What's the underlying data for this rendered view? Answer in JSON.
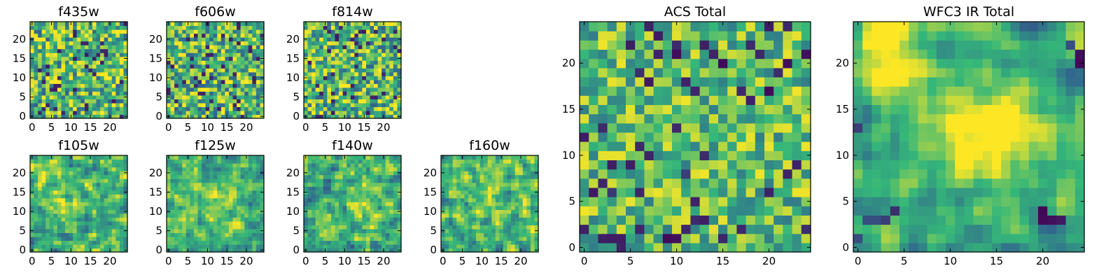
{
  "figure": {
    "colormap": "viridis",
    "colorscale_stops": [
      "#440154",
      "#31688e",
      "#35b779",
      "#fde725"
    ]
  },
  "chart_data": [
    {
      "type": "heatmap",
      "title": "f435w",
      "grid_size": 25,
      "xlim": [
        -0.5,
        24.5
      ],
      "ylim": [
        -0.5,
        24.5
      ],
      "x_ticks": [
        0,
        5,
        10,
        15,
        20
      ],
      "y_ticks": [
        0,
        5,
        10,
        15,
        20
      ],
      "seed": 11,
      "smooth": 0,
      "mean": 0.66,
      "contrast": 0.78,
      "dark_spots": [],
      "bright_regions": []
    },
    {
      "type": "heatmap",
      "title": "f606w",
      "grid_size": 25,
      "xlim": [
        -0.5,
        24.5
      ],
      "ylim": [
        -0.5,
        24.5
      ],
      "x_ticks": [
        0,
        5,
        10,
        15,
        20
      ],
      "y_ticks": [
        0,
        5,
        10,
        15,
        20
      ],
      "seed": 23,
      "smooth": 0,
      "mean": 0.66,
      "contrast": 0.78,
      "dark_spots": [],
      "bright_regions": []
    },
    {
      "type": "heatmap",
      "title": "f814w",
      "grid_size": 25,
      "xlim": [
        -0.5,
        24.5
      ],
      "ylim": [
        -0.5,
        24.5
      ],
      "x_ticks": [
        0,
        5,
        10,
        15,
        20
      ],
      "y_ticks": [
        0,
        5,
        10,
        15,
        20
      ],
      "seed": 37,
      "smooth": 0,
      "mean": 0.66,
      "contrast": 0.78,
      "dark_spots": [],
      "bright_regions": []
    },
    {
      "type": "heatmap",
      "title": "f105w",
      "grid_size": 25,
      "xlim": [
        -0.5,
        24.5
      ],
      "ylim": [
        -0.5,
        24.5
      ],
      "x_ticks": [
        0,
        5,
        10,
        15,
        20
      ],
      "y_ticks": [
        0,
        5,
        10,
        15,
        20
      ],
      "seed": 41,
      "smooth": 1,
      "mean": 0.64,
      "contrast": 0.72,
      "dark_spots": [],
      "bright_regions": [
        {
          "x": 9,
          "y": 13,
          "r": 6,
          "a": 0.2
        },
        {
          "x": 2,
          "y": 21,
          "r": 4,
          "a": 0.18
        }
      ]
    },
    {
      "type": "heatmap",
      "title": "f125w",
      "grid_size": 25,
      "xlim": [
        -0.5,
        24.5
      ],
      "ylim": [
        -0.5,
        24.5
      ],
      "x_ticks": [
        0,
        5,
        10,
        15,
        20
      ],
      "y_ticks": [
        0,
        5,
        10,
        15,
        20
      ],
      "seed": 53,
      "smooth": 1,
      "mean": 0.66,
      "contrast": 0.72,
      "dark_spots": [],
      "bright_regions": [
        {
          "x": 14,
          "y": 12,
          "r": 6,
          "a": 0.15
        }
      ]
    },
    {
      "type": "heatmap",
      "title": "f140w",
      "grid_size": 25,
      "xlim": [
        -0.5,
        24.5
      ],
      "ylim": [
        -0.5,
        24.5
      ],
      "x_ticks": [
        0,
        5,
        10,
        15,
        20
      ],
      "y_ticks": [
        0,
        5,
        10,
        15,
        20
      ],
      "seed": 67,
      "smooth": 1,
      "mean": 0.64,
      "contrast": 0.72,
      "dark_spots": [],
      "bright_regions": [
        {
          "x": 16,
          "y": 13,
          "r": 5,
          "a": 0.18
        }
      ]
    },
    {
      "type": "heatmap",
      "title": "f160w",
      "grid_size": 25,
      "xlim": [
        -0.5,
        24.5
      ],
      "ylim": [
        -0.5,
        24.5
      ],
      "x_ticks": [
        0,
        5,
        10,
        15,
        20
      ],
      "y_ticks": [
        0,
        5,
        10,
        15,
        20
      ],
      "seed": 79,
      "smooth": 1,
      "mean": 0.66,
      "contrast": 0.72,
      "dark_spots": [],
      "bright_regions": [
        {
          "x": 11,
          "y": 14,
          "r": 6,
          "a": 0.15
        }
      ]
    },
    {
      "type": "heatmap",
      "title": "ACS Total",
      "grid_size": 25,
      "xlim": [
        -0.5,
        24.5
      ],
      "ylim": [
        -0.5,
        24.5
      ],
      "x_ticks": [
        0,
        5,
        10,
        15,
        20
      ],
      "y_ticks": [
        0,
        5,
        10,
        15,
        20
      ],
      "seed": 97,
      "smooth": 0,
      "mean": 0.68,
      "contrast": 0.6,
      "dark_spots": [
        [
          10,
          21,
          0.04
        ],
        [
          24,
          21,
          0.05
        ],
        [
          15,
          20,
          0.03
        ],
        [
          22,
          20,
          0.05
        ],
        [
          20,
          17,
          0.03
        ],
        [
          6,
          19,
          0.15
        ],
        [
          1,
          6,
          0.08
        ],
        [
          6,
          6,
          0.12
        ],
        [
          3,
          6,
          0.18
        ],
        [
          11,
          8,
          0.2
        ],
        [
          0,
          2,
          0.1
        ],
        [
          9,
          1,
          0.03
        ],
        [
          10,
          1,
          0.05
        ],
        [
          15,
          1,
          0.12
        ],
        [
          24,
          2,
          0.15
        ]
      ],
      "bright_regions": []
    },
    {
      "type": "heatmap",
      "title": "WFC3 IR Total",
      "grid_size": 25,
      "xlim": [
        -0.5,
        24.5
      ],
      "ylim": [
        -0.5,
        24.5
      ],
      "x_ticks": [
        0,
        5,
        10,
        15,
        20
      ],
      "y_ticks": [
        0,
        5,
        10,
        15,
        20
      ],
      "seed": 113,
      "smooth": 2,
      "mean": 0.6,
      "contrast": 0.6,
      "dark_spots": [
        [
          24,
          20,
          0.03
        ],
        [
          24,
          21,
          0.05
        ],
        [
          23,
          22,
          0.25
        ],
        [
          20,
          4,
          0.02
        ],
        [
          20,
          3,
          0.03
        ],
        [
          21,
          3,
          0.05
        ],
        [
          22,
          3,
          0.08
        ],
        [
          4,
          4,
          0.15
        ],
        [
          3,
          3,
          0.2
        ],
        [
          2,
          3,
          0.25
        ],
        [
          0,
          1,
          0.25
        ],
        [
          0,
          13,
          0.2
        ],
        [
          1,
          3,
          0.25
        ]
      ],
      "bright_regions": [
        {
          "x": 3,
          "y": 21,
          "r": 5,
          "a": 0.45
        },
        {
          "x": 13,
          "y": 12,
          "r": 6,
          "a": 0.35
        },
        {
          "x": 16,
          "y": 13,
          "r": 4,
          "a": 0.2
        }
      ]
    }
  ]
}
